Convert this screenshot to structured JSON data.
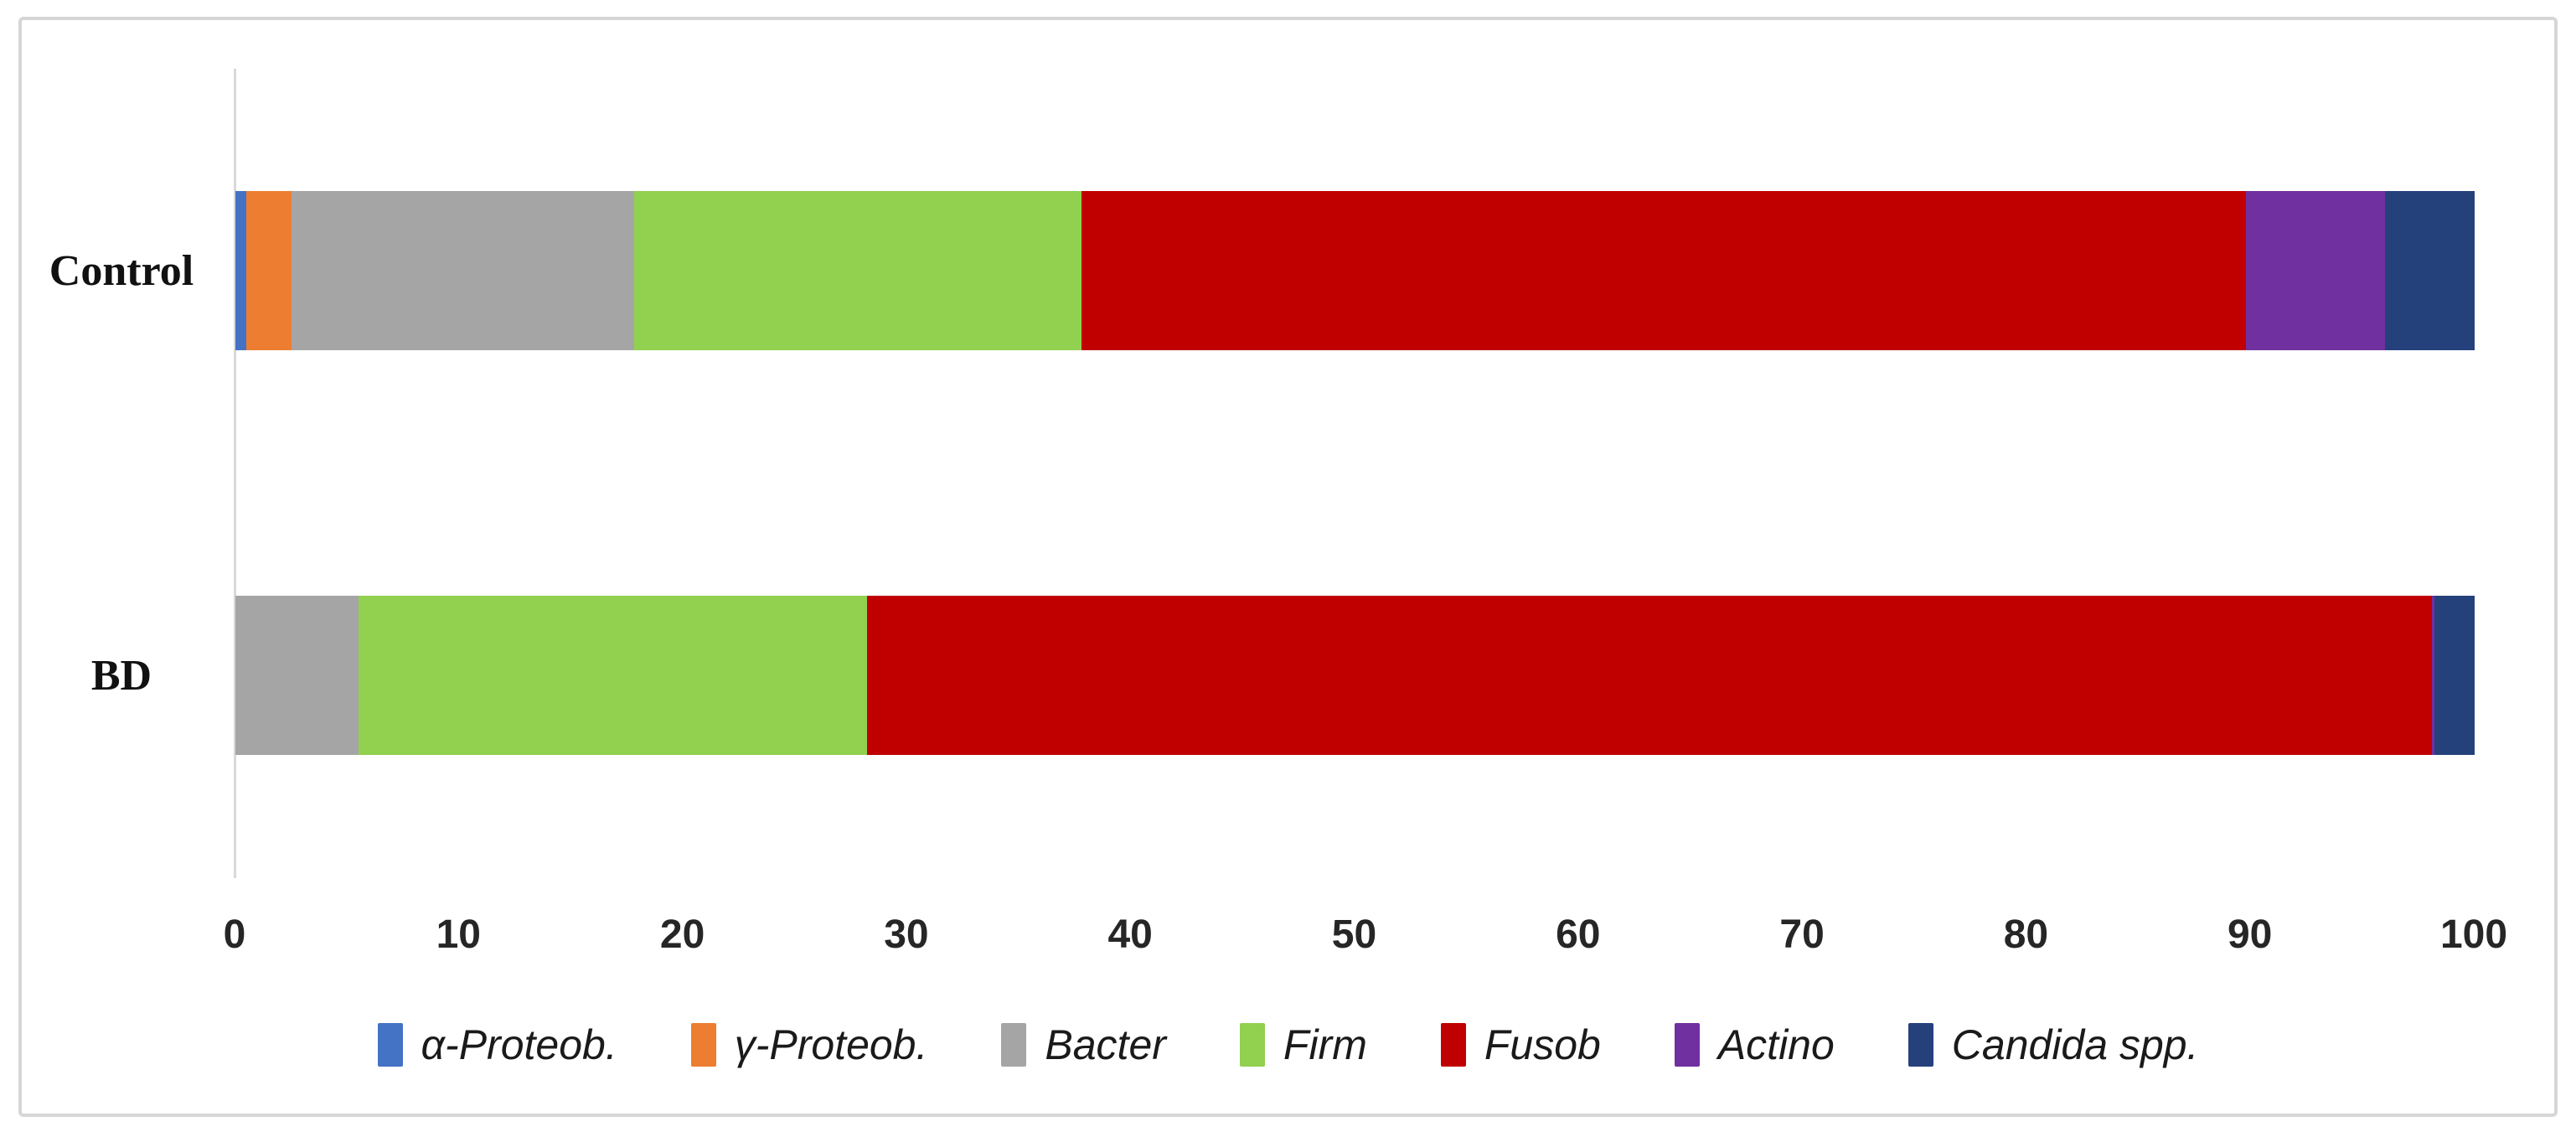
{
  "style": {
    "frame_border_color": "#d6d6d6",
    "axis_line_color": "#d9d9d9",
    "tick_text_color": "#262626",
    "label_text_color": "#111111",
    "background_color": "#ffffff"
  },
  "chart_data": {
    "type": "bar",
    "orientation": "horizontal",
    "stacked": true,
    "title": "",
    "xlabel": "",
    "ylabel": "",
    "xlim": [
      0,
      100
    ],
    "x_ticks": [
      0,
      10,
      20,
      30,
      40,
      50,
      60,
      70,
      80,
      90,
      100
    ],
    "grid": false,
    "legend_position": "bottom",
    "categories": [
      "Control",
      "BD"
    ],
    "series": [
      {
        "name": "α-Proteob.",
        "color": "#4472C4",
        "values": [
          0.5,
          0
        ]
      },
      {
        "name": "γ-Proteob.",
        "color": "#ED7D31",
        "values": [
          2.0,
          0
        ]
      },
      {
        "name": "Bacter",
        "color": "#A5A5A5",
        "values": [
          15.3,
          5.5
        ]
      },
      {
        "name": "Firm",
        "color": "#92D050",
        "values": [
          20.0,
          22.7
        ]
      },
      {
        "name": "Fusob",
        "color": "#C00000",
        "values": [
          52.0,
          69.9
        ]
      },
      {
        "name": "Actino",
        "color": "#7030A0",
        "values": [
          6.2,
          0.1
        ]
      },
      {
        "name": "Candida spp.",
        "color": "#24417C",
        "values": [
          4.0,
          1.8
        ]
      }
    ]
  }
}
